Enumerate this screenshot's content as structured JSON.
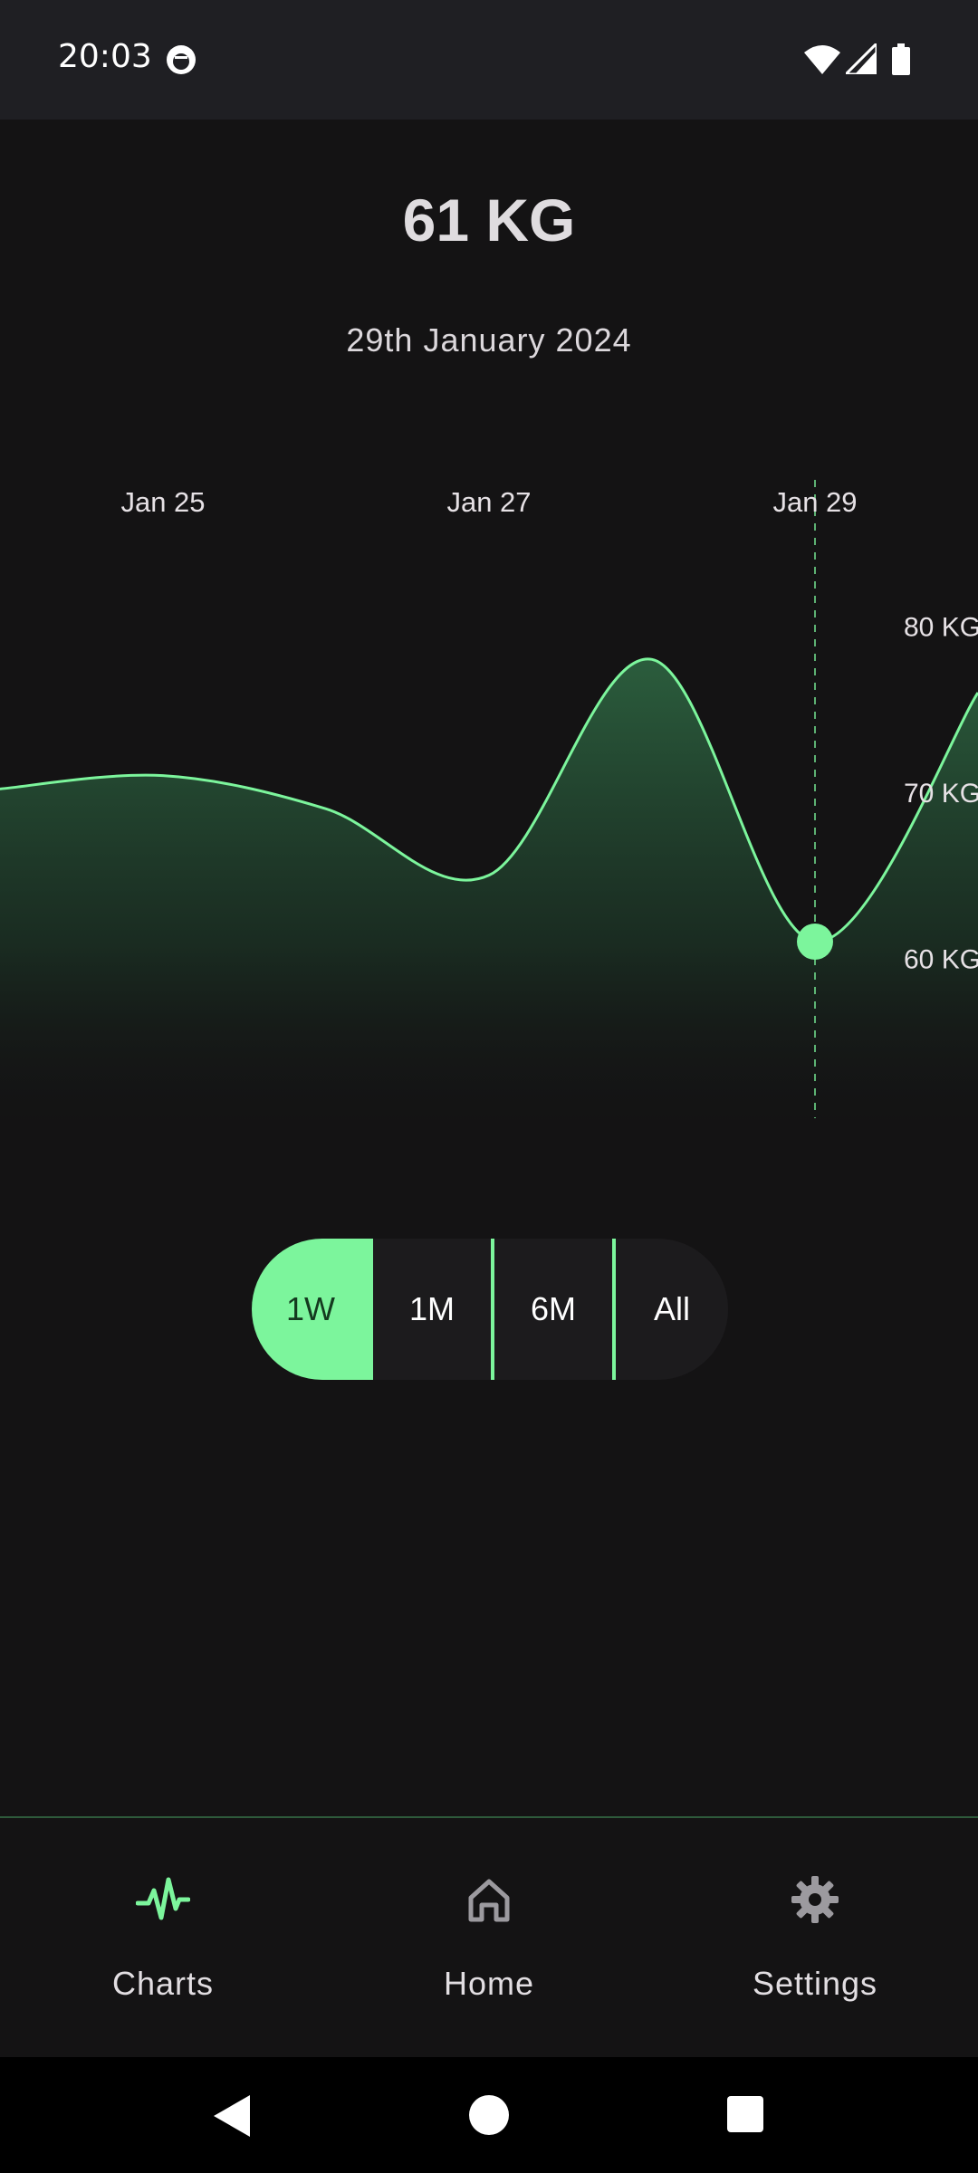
{
  "status_bar": {
    "time": "20:03",
    "icons": [
      "app-notification-icon",
      "wifi-icon",
      "signal-icon",
      "battery-icon"
    ]
  },
  "header": {
    "weight": "61 KG",
    "date": "29th January 2024"
  },
  "chart_data": {
    "type": "area",
    "x_ticks": [
      "Jan 25",
      "Jan 27",
      "Jan 29"
    ],
    "y_ticks": [
      "60 KG",
      "70 KG",
      "80 KG"
    ],
    "x": [
      "Jan 24",
      "Jan 25",
      "Jan 26",
      "Jan 27",
      "Jan 28",
      "Jan 29",
      "Jan 30"
    ],
    "values": [
      70.2,
      71.0,
      69.0,
      65.0,
      78.0,
      61.0,
      76.0
    ],
    "selected": {
      "x": "Jan 29",
      "value": 61
    },
    "ylim": [
      55,
      85
    ],
    "line_color": "#7cf59c",
    "title": "",
    "xlabel": "",
    "ylabel": ""
  },
  "range_selector": {
    "options": [
      "1W",
      "1M",
      "6M",
      "All"
    ],
    "selected": "1W"
  },
  "bottom_nav": {
    "items": [
      {
        "label": "Charts",
        "icon": "pulse-icon",
        "active": true
      },
      {
        "label": "Home",
        "icon": "home-icon",
        "active": false
      },
      {
        "label": "Settings",
        "icon": "gear-icon",
        "active": false
      }
    ]
  },
  "colors": {
    "accent": "#7cf59c",
    "background": "#141314",
    "surface": "#1c1b1d"
  },
  "system_nav": [
    "back-icon",
    "home-circle-icon",
    "recents-icon"
  ]
}
